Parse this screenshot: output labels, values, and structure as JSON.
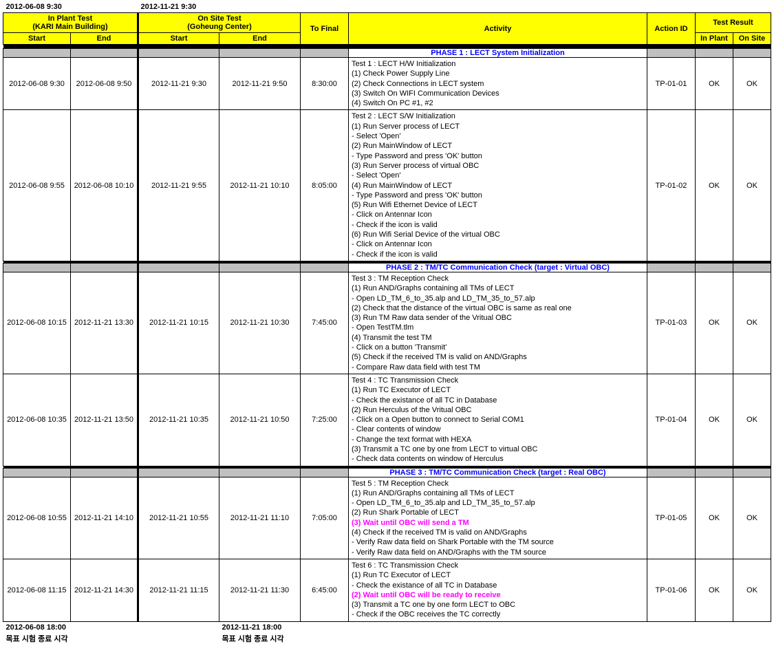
{
  "top_timestamps": {
    "left": "2012-06-08 9:30",
    "right": "2012-11-21 9:30"
  },
  "header": {
    "in_plant_title": "In Plant Test",
    "in_plant_sub": "(KARI Main Building)",
    "on_site_title": "On Site Test",
    "on_site_sub": "(Goheung Center)",
    "start": "Start",
    "end": "End",
    "to_final": "To Final",
    "activity": "Activity",
    "action_id": "Action ID",
    "test_result": "Test Result",
    "in_plant": "In Plant",
    "on_site": "On Site"
  },
  "phases": {
    "p1": "PHASE 1 : LECT System Initialization",
    "p2": "PHASE 2 : TM/TC Communication Check (target : Virtual OBC)",
    "p3": "PHASE 3 : TM/TC Communication Check (target : Real OBC)"
  },
  "rows": [
    {
      "s1": "2012-06-08 9:30",
      "e1": "2012-06-08 9:50",
      "s2": "2012-11-21 9:30",
      "e2": "2012-11-21 9:50",
      "tofinal": "8:30:00",
      "activity": "Test 1 : LECT H/W Initialization\n(1) Check Power Supply Line\n(2) Check Connections in LECT system\n(3) Switch On WIFI Communication Devices\n(4) Switch On PC #1, #2",
      "action": "TP-01-01",
      "r1": "OK",
      "r2": "OK"
    },
    {
      "s1": "2012-06-08 9:55",
      "e1": "2012-06-08 10:10",
      "s2": "2012-11-21 9:55",
      "e2": "2012-11-21 10:10",
      "tofinal": "8:05:00",
      "activity": "Test 2 : LECT S/W Initialization\n(1) Run Server process of LECT\n     - Select 'Open'\n(2) Run MainWindow of LECT\n     - Type Password and press 'OK' button\n(3) Run Server process of virtual OBC\n     - Select 'Open'\n(4) Run MainWindow of LECT\n     - Type Password and press 'OK' button\n(5) Run Wifi Ethernet Device of LECT\n     - Click on Antennar Icon\n     - Check if the icon is valid\n(6) Run Wifi Serial Device of the virtual OBC\n     - Click on Antennar Icon\n     - Check if the icon is valid",
      "action": "TP-01-02",
      "r1": "OK",
      "r2": "OK"
    },
    {
      "s1": "2012-06-08 10:15",
      "e1": "2012-11-21 13:30",
      "s2": "2012-11-21 10:15",
      "e2": "2012-11-21 10:30",
      "tofinal": "7:45:00",
      "activity": "Test 3 : TM Reception Check\n(1) Run AND/Graphs containing all TMs of LECT\n     - Open LD_TM_6_to_35.alp and LD_TM_35_to_57.alp\n(2) Check that the distance of the virtual OBC is same as real one\n(3) Run TM Raw data sender of the Vritual OBC\n     - Open TestTM.tlm\n(4) Transmit the test TM\n     - Click on a button 'Transmit'\n(5) Check if the received TM is valid on AND/Graphs\n     - Compare Raw data field with test TM",
      "action": "TP-01-03",
      "r1": "OK",
      "r2": "OK"
    },
    {
      "s1": "2012-06-08 10:35",
      "e1": "2012-11-21 13:50",
      "s2": "2012-11-21 10:35",
      "e2": "2012-11-21 10:50",
      "tofinal": "7:25:00",
      "activity": "Test 4 : TC Transmission Check\n(1) Run TC Executor of LECT\n     - Check the existance of all TC in Database\n(2) Run Herculus of the Vritual OBC\n     - Click on a Open button to connect to Serial COM1\n     - Clear contents of window\n     - Change the text format with HEXA\n(3) Transmit a TC one by one from LECT to virtual OBC\n     - Check data contents on window of Herculus",
      "action": "TP-01-04",
      "r1": "OK",
      "r2": "OK"
    },
    {
      "s1": "2012-06-08 10:55",
      "e1": "2012-11-21 14:10",
      "s2": "2012-11-21 10:55",
      "e2": "2012-11-21 11:10",
      "tofinal": "7:05:00",
      "activity_pre": "Test 5 : TM Reception Check\n(1) Run AND/Graphs containing all TMs of LECT\n     - Open LD_TM_6_to_35.alp and LD_TM_35_to_57.alp\n(2) Run Shark Portable of LECT",
      "activity_pink": "(3) Wait until OBC will send a TM",
      "activity_post": "(4) Check if the received TM is valid on AND/Graphs\n     - Verify Raw data field on Shark Portable with the TM source\n     - Verify Raw data field on AND/Graphs with the TM source",
      "action": "TP-01-05",
      "r1": "OK",
      "r2": "OK"
    },
    {
      "s1": "2012-06-08 11:15",
      "e1": "2012-11-21 14:30",
      "s2": "2012-11-21 11:15",
      "e2": "2012-11-21 11:30",
      "tofinal": "6:45:00",
      "activity_pre": "Test 6 : TC Transmission Check\n(1) Run TC Executor of LECT\n     - Check the existance of all TC in Database",
      "activity_pink": "(2) Wait until OBC will be ready to receive",
      "activity_post": "(3) Transmit a TC one by one form LECT to OBC\n     - Check if the OBC receives the TC correctly",
      "action": "TP-01-06",
      "r1": "OK",
      "r2": "OK"
    }
  ],
  "footer": {
    "left_time": "2012-06-08 18:00",
    "left_text": "목표 시험 종료 시각",
    "right_time": "2012-11-21 18:00",
    "right_text": "목표 시험 종료 시각"
  },
  "colors": {
    "header_bg": "#ffff00",
    "phase_text": "#0000ff",
    "gray_gap": "#c0c0c0",
    "pink": "#ff00ff"
  }
}
